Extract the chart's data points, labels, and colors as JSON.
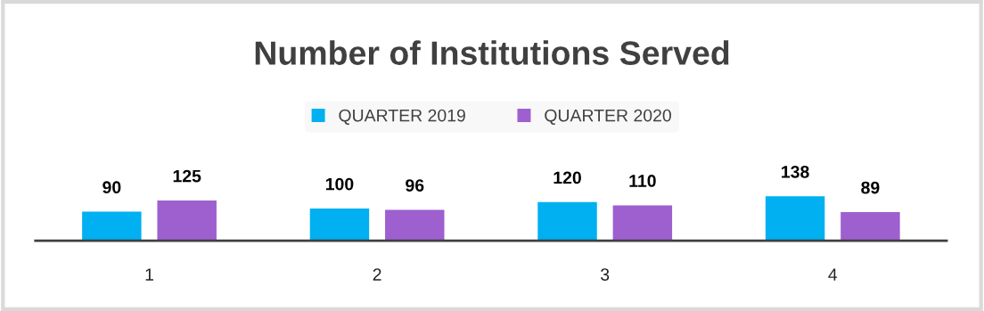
{
  "chart_data": {
    "type": "bar",
    "title": "Number of Institutions Served",
    "categories": [
      "1",
      "2",
      "3",
      "4"
    ],
    "series": [
      {
        "name": "QUARTER 2019",
        "color": "#00b0f0",
        "values": [
          90,
          100,
          120,
          138
        ]
      },
      {
        "name": "QUARTER 2020",
        "color": "#9e5fcf",
        "values": [
          125,
          96,
          110,
          89
        ]
      }
    ],
    "data_labels": true,
    "legend": "top",
    "grid": false,
    "tick_labels": "x"
  }
}
